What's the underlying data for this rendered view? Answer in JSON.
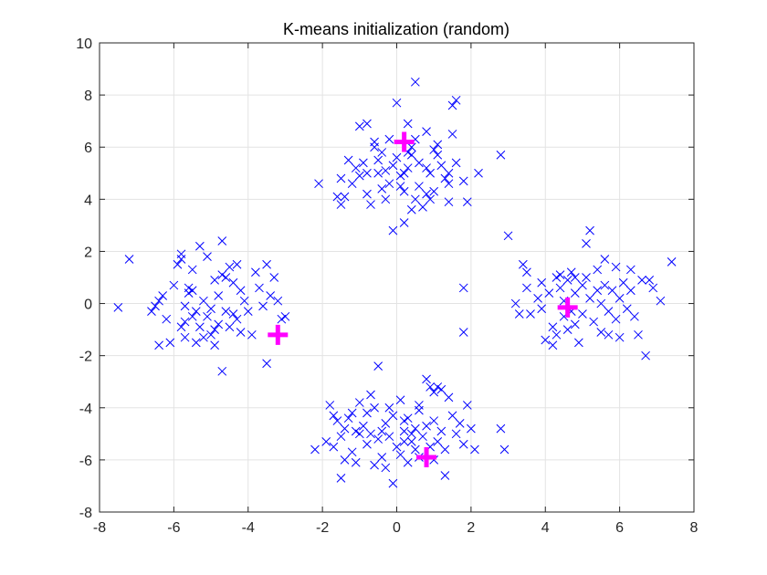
{
  "chart_data": {
    "type": "scatter",
    "title": "K-means initialization (random)",
    "xlabel": "",
    "ylabel": "",
    "xlim": [
      -8,
      8
    ],
    "ylim": [
      -8,
      10
    ],
    "xticks": [
      -8,
      -6,
      -4,
      -2,
      0,
      2,
      4,
      6,
      8
    ],
    "yticks": [
      -8,
      -6,
      -4,
      -2,
      0,
      2,
      4,
      6,
      8,
      10
    ],
    "grid": true,
    "colors": {
      "points": "#0000ff",
      "centroids": "#ff00ff"
    },
    "series": [
      {
        "marker": "x",
        "points": [
          [
            -7.5,
            -0.15
          ],
          [
            -7.2,
            1.7
          ],
          [
            -6.6,
            -0.3
          ],
          [
            -6.5,
            -0.1
          ],
          [
            -6.4,
            0.1
          ],
          [
            -6.4,
            -1.6
          ],
          [
            -6.3,
            0.3
          ],
          [
            -6.2,
            -0.6
          ],
          [
            -6.1,
            -1.5
          ],
          [
            -6.0,
            0.7
          ],
          [
            -5.9,
            1.5
          ],
          [
            -5.8,
            1.9
          ],
          [
            -5.8,
            1.7
          ],
          [
            -5.8,
            -0.9
          ],
          [
            -5.7,
            -0.7
          ],
          [
            -5.7,
            -1.3
          ],
          [
            -5.7,
            -0.1
          ],
          [
            -5.6,
            0.4
          ],
          [
            -5.6,
            0.6
          ],
          [
            -5.5,
            -0.5
          ],
          [
            -5.5,
            0.5
          ],
          [
            -5.5,
            1.3
          ],
          [
            -5.4,
            -0.3
          ],
          [
            -5.4,
            -1.5
          ],
          [
            -5.3,
            2.2
          ],
          [
            -5.3,
            -0.9
          ],
          [
            -5.2,
            0.1
          ],
          [
            -5.2,
            -1.3
          ],
          [
            -5.1,
            1.8
          ],
          [
            -5.1,
            -0.5
          ],
          [
            -5.0,
            -0.2
          ],
          [
            -5.0,
            -1.2
          ],
          [
            -4.9,
            0.9
          ],
          [
            -4.9,
            -1.0
          ],
          [
            -4.9,
            -1.6
          ],
          [
            -4.8,
            0.3
          ],
          [
            -4.8,
            -0.8
          ],
          [
            -4.7,
            2.4
          ],
          [
            -4.7,
            1.1
          ],
          [
            -4.7,
            -2.6
          ],
          [
            -4.6,
            1.0
          ],
          [
            -4.6,
            -0.3
          ],
          [
            -4.5,
            1.4
          ],
          [
            -4.5,
            -0.9
          ],
          [
            -4.4,
            0.8
          ],
          [
            -4.4,
            -0.4
          ],
          [
            -4.3,
            1.5
          ],
          [
            -4.3,
            -0.6
          ],
          [
            -4.2,
            0.5
          ],
          [
            -4.2,
            -1.1
          ],
          [
            -4.1,
            0.1
          ],
          [
            -4.0,
            -0.3
          ],
          [
            -3.9,
            -1.2
          ],
          [
            -3.8,
            1.2
          ],
          [
            -3.7,
            0.6
          ],
          [
            -3.6,
            -0.1
          ],
          [
            -3.5,
            1.5
          ],
          [
            -3.5,
            -2.3
          ],
          [
            -3.4,
            0.3
          ],
          [
            -3.3,
            1.0
          ],
          [
            -3.2,
            0.1
          ],
          [
            -3.1,
            -0.6
          ],
          [
            -3.0,
            -0.5
          ],
          [
            -0.8,
            6.9
          ],
          [
            -0.6,
            6.0
          ],
          [
            -1.1,
            5.2
          ],
          [
            -1.2,
            4.6
          ],
          [
            -1.4,
            4.1
          ],
          [
            -1.5,
            3.8
          ],
          [
            -1.5,
            4.8
          ],
          [
            -0.5,
            5.5
          ],
          [
            -0.4,
            5.8
          ],
          [
            -0.2,
            4.6
          ],
          [
            -0.1,
            5.3
          ],
          [
            -0.8,
            4.2
          ],
          [
            -0.7,
            3.8
          ],
          [
            -0.3,
            4.0
          ],
          [
            0.0,
            7.7
          ],
          [
            0.3,
            6.9
          ],
          [
            0.5,
            6.3
          ],
          [
            0.4,
            5.7
          ],
          [
            0.2,
            5.0
          ],
          [
            0.1,
            4.5
          ],
          [
            0.2,
            3.1
          ],
          [
            -0.1,
            2.8
          ],
          [
            0.4,
            3.6
          ],
          [
            0.5,
            4.0
          ],
          [
            0.6,
            4.5
          ],
          [
            0.8,
            6.6
          ],
          [
            0.8,
            5.2
          ],
          [
            0.9,
            4.0
          ],
          [
            0.5,
            8.5
          ],
          [
            1.0,
            5.9
          ],
          [
            1.1,
            6.1
          ],
          [
            1.2,
            5.3
          ],
          [
            1.3,
            4.8
          ],
          [
            1.4,
            4.6
          ],
          [
            1.5,
            7.6
          ],
          [
            1.6,
            7.8
          ],
          [
            1.5,
            6.5
          ],
          [
            1.4,
            3.9
          ],
          [
            1.4,
            5.0
          ],
          [
            1.6,
            5.4
          ],
          [
            1.8,
            4.7
          ],
          [
            1.9,
            3.9
          ],
          [
            2.2,
            5.0
          ],
          [
            2.8,
            5.7
          ],
          [
            -0.2,
            6.3
          ],
          [
            -0.6,
            6.2
          ],
          [
            0.3,
            5.8
          ],
          [
            0.0,
            5.6
          ],
          [
            -0.3,
            5.1
          ],
          [
            -0.8,
            5.0
          ],
          [
            -1.0,
            4.9
          ],
          [
            -0.9,
            5.4
          ],
          [
            -0.4,
            4.4
          ],
          [
            0.2,
            4.3
          ],
          [
            0.3,
            5.2
          ],
          [
            0.6,
            5.4
          ],
          [
            0.9,
            5.0
          ],
          [
            1.0,
            4.3
          ],
          [
            0.7,
            3.7
          ],
          [
            0.1,
            4.9
          ],
          [
            -2.1,
            4.6
          ],
          [
            -1.6,
            4.1
          ],
          [
            -1.3,
            5.5
          ],
          [
            -1.0,
            6.8
          ],
          [
            -0.5,
            5.0
          ],
          [
            0.8,
            4.2
          ],
          [
            1.1,
            5.7
          ],
          [
            0.4,
            6.0
          ],
          [
            3.0,
            2.6
          ],
          [
            3.2,
            0.0
          ],
          [
            3.3,
            -0.4
          ],
          [
            3.4,
            1.5
          ],
          [
            3.5,
            1.2
          ],
          [
            3.5,
            0.6
          ],
          [
            3.6,
            -0.4
          ],
          [
            3.8,
            0.2
          ],
          [
            3.9,
            -0.2
          ],
          [
            4.0,
            -1.4
          ],
          [
            4.1,
            0.4
          ],
          [
            4.2,
            -0.9
          ],
          [
            4.3,
            1.0
          ],
          [
            4.3,
            -1.2
          ],
          [
            4.4,
            0.6
          ],
          [
            4.5,
            0.1
          ],
          [
            4.5,
            -0.5
          ],
          [
            4.6,
            0.9
          ],
          [
            4.6,
            -1.0
          ],
          [
            4.7,
            -0.3
          ],
          [
            4.7,
            1.2
          ],
          [
            4.8,
            0.4
          ],
          [
            4.8,
            -0.8
          ],
          [
            4.9,
            -1.5
          ],
          [
            5.0,
            0.7
          ],
          [
            5.0,
            -0.4
          ],
          [
            5.1,
            1.0
          ],
          [
            5.1,
            2.3
          ],
          [
            5.2,
            2.8
          ],
          [
            5.2,
            0.2
          ],
          [
            5.3,
            -0.7
          ],
          [
            5.4,
            1.3
          ],
          [
            5.4,
            0.5
          ],
          [
            5.5,
            -1.1
          ],
          [
            5.5,
            0.0
          ],
          [
            5.6,
            1.7
          ],
          [
            5.6,
            0.7
          ],
          [
            5.7,
            -0.3
          ],
          [
            5.7,
            -1.2
          ],
          [
            5.8,
            0.5
          ],
          [
            5.9,
            1.4
          ],
          [
            5.9,
            -0.6
          ],
          [
            6.0,
            0.2
          ],
          [
            6.0,
            -1.3
          ],
          [
            6.1,
            0.8
          ],
          [
            6.2,
            -0.2
          ],
          [
            6.3,
            1.3
          ],
          [
            6.3,
            0.5
          ],
          [
            6.4,
            -0.5
          ],
          [
            6.5,
            -1.2
          ],
          [
            6.6,
            0.9
          ],
          [
            6.7,
            -2.0
          ],
          [
            6.8,
            0.9
          ],
          [
            6.9,
            0.6
          ],
          [
            7.1,
            0.1
          ],
          [
            7.4,
            1.6
          ],
          [
            4.4,
            1.1
          ],
          [
            4.2,
            -1.6
          ],
          [
            3.9,
            0.8
          ],
          [
            4.8,
            1.0
          ],
          [
            -1.0,
            -3.8
          ],
          [
            -1.2,
            -4.2
          ],
          [
            -1.4,
            -4.8
          ],
          [
            -1.5,
            -5.1
          ],
          [
            -1.6,
            -4.5
          ],
          [
            -1.7,
            -5.5
          ],
          [
            -1.8,
            -3.9
          ],
          [
            -2.2,
            -5.6
          ],
          [
            -1.9,
            -5.3
          ],
          [
            -1.5,
            -6.7
          ],
          [
            -1.4,
            -6.0
          ],
          [
            -1.3,
            -4.4
          ],
          [
            -1.2,
            -5.7
          ],
          [
            -1.1,
            -6.1
          ],
          [
            -1.0,
            -5.0
          ],
          [
            -0.9,
            -4.7
          ],
          [
            -0.8,
            -5.4
          ],
          [
            -0.7,
            -3.5
          ],
          [
            -0.6,
            -4.0
          ],
          [
            -0.6,
            -6.2
          ],
          [
            -0.5,
            -5.2
          ],
          [
            -0.5,
            -2.4
          ],
          [
            -0.4,
            -5.9
          ],
          [
            -0.3,
            -4.6
          ],
          [
            -0.3,
            -6.3
          ],
          [
            -0.2,
            -5.1
          ],
          [
            -0.1,
            -4.3
          ],
          [
            0.0,
            -5.5
          ],
          [
            -0.1,
            -6.9
          ],
          [
            0.1,
            -3.7
          ],
          [
            0.1,
            -5.8
          ],
          [
            0.2,
            -4.9
          ],
          [
            0.3,
            -4.4
          ],
          [
            0.3,
            -6.1
          ],
          [
            0.4,
            -5.3
          ],
          [
            0.5,
            -4.8
          ],
          [
            0.5,
            -5.6
          ],
          [
            0.6,
            -3.9
          ],
          [
            0.6,
            -4.1
          ],
          [
            0.7,
            -5.1
          ],
          [
            0.8,
            -4.7
          ],
          [
            0.8,
            -2.9
          ],
          [
            0.9,
            -5.5
          ],
          [
            1.0,
            -4.5
          ],
          [
            1.0,
            -6.0
          ],
          [
            1.1,
            -3.2
          ],
          [
            1.1,
            -5.3
          ],
          [
            1.2,
            -4.9
          ],
          [
            1.3,
            -6.6
          ],
          [
            1.3,
            -5.6
          ],
          [
            1.4,
            -3.6
          ],
          [
            1.5,
            -4.3
          ],
          [
            1.6,
            -5.0
          ],
          [
            1.7,
            -4.6
          ],
          [
            1.8,
            -5.4
          ],
          [
            2.0,
            -4.8
          ],
          [
            2.1,
            -5.6
          ],
          [
            2.8,
            -4.8
          ],
          [
            2.9,
            -5.6
          ],
          [
            1.9,
            -3.9
          ],
          [
            -0.4,
            -4.9
          ],
          [
            0.2,
            -5.3
          ],
          [
            -0.7,
            -5.0
          ],
          [
            0.6,
            -5.9
          ],
          [
            -0.2,
            -4.0
          ],
          [
            1.0,
            -3.4
          ],
          [
            -1.1,
            -4.9
          ],
          [
            0.4,
            -5.0
          ],
          [
            -0.8,
            -4.2
          ],
          [
            0.2,
            -4.5
          ],
          [
            1.8,
            0.6
          ],
          [
            1.8,
            -1.1
          ],
          [
            0.9,
            -3.2
          ],
          [
            1.2,
            -3.3
          ],
          [
            -1.7,
            -4.3
          ]
        ]
      },
      {
        "marker": "plus",
        "points": [
          [
            -3.2,
            -1.2
          ],
          [
            0.2,
            6.2
          ],
          [
            4.6,
            -0.15
          ],
          [
            0.8,
            -5.9
          ]
        ]
      }
    ]
  }
}
